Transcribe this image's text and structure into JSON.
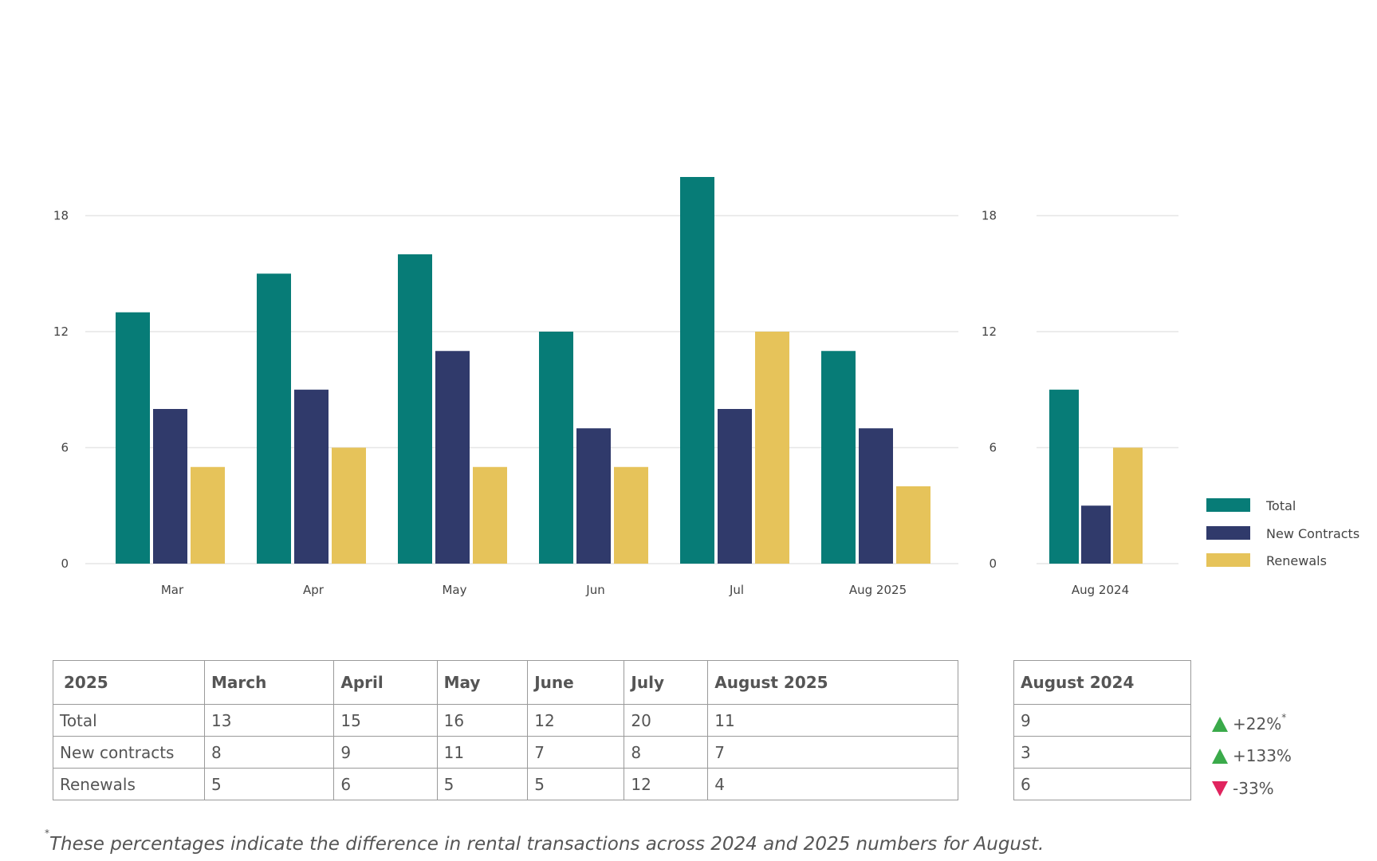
{
  "chart_data": [
    {
      "type": "bar",
      "categories": [
        "Mar",
        "Apr",
        "May",
        "Jun",
        "Jul",
        "Aug 2025"
      ],
      "series": [
        {
          "name": "Total",
          "values": [
            13,
            15,
            16,
            12,
            20,
            11
          ]
        },
        {
          "name": "New Contracts",
          "values": [
            8,
            9,
            11,
            7,
            8,
            7
          ]
        },
        {
          "name": "Renewals",
          "values": [
            5,
            6,
            5,
            5,
            12,
            4
          ]
        }
      ],
      "yticks": [
        0,
        6,
        12,
        18
      ],
      "ylim": [
        0,
        20
      ],
      "grid": true
    },
    {
      "type": "bar",
      "categories": [
        "Aug 2024"
      ],
      "series": [
        {
          "name": "Total",
          "values": [
            9
          ]
        },
        {
          "name": "New Contracts",
          "values": [
            3
          ]
        },
        {
          "name": "Renewals",
          "values": [
            6
          ]
        }
      ],
      "yticks": [
        0,
        6,
        12,
        18
      ],
      "ylim": [
        0,
        20
      ],
      "grid": true
    }
  ],
  "colors": {
    "Total": "#077c77",
    "New Contracts": "#303a6b",
    "Renewals": "#e6c35a",
    "up": "#3aaa4a",
    "down": "#e0245e",
    "grid": "#e6e6e6"
  },
  "legend": {
    "placement": "right",
    "items": [
      "Total",
      "New Contracts",
      "Renewals"
    ]
  },
  "table": {
    "headers": [
      "2025",
      "March",
      "April",
      "May",
      "June",
      "July",
      "August 2025"
    ],
    "rows": [
      [
        "Total",
        "13",
        "15",
        "16",
        "12",
        "20",
        "11"
      ],
      [
        "New contracts",
        "8",
        "9",
        "11",
        "7",
        "8",
        "7"
      ],
      [
        "Renewals",
        "5",
        "6",
        "5",
        "5",
        "12",
        "4"
      ]
    ]
  },
  "aug_table": {
    "header": "August 2024",
    "rows": [
      "9",
      "3",
      "6"
    ]
  },
  "changes": [
    {
      "direction": "up",
      "icon": "triangle-up-icon",
      "text": "+22%",
      "mark": "*"
    },
    {
      "direction": "up",
      "icon": "triangle-up-icon",
      "text": "+133%",
      "mark": ""
    },
    {
      "direction": "down",
      "icon": "triangle-down-icon",
      "text": "-33%",
      "mark": ""
    }
  ],
  "footnote": {
    "mark": "*",
    "text": "These percentages indicate the difference in rental transactions across 2024 and 2025 numbers for August."
  }
}
